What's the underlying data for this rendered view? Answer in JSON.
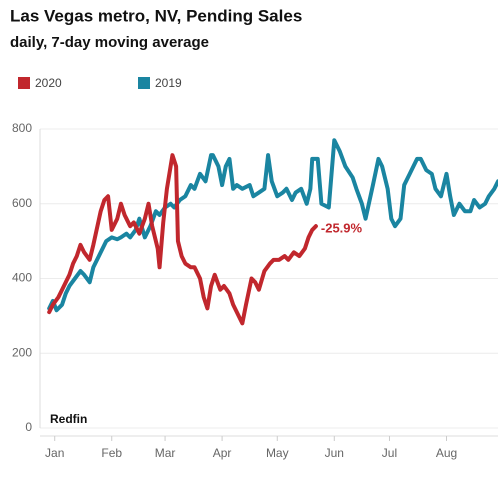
{
  "chart_data": {
    "type": "line",
    "title": "Las Vegas metro, NV, Pending Sales",
    "subtitle": "daily, 7-day moving average",
    "source": "Redfin",
    "annotation": "-25.9%",
    "xlim": [
      7,
      256
    ],
    "ylim": [
      0,
      800
    ],
    "yticks": [
      0,
      200,
      400,
      600,
      800
    ],
    "xticks": [
      {
        "value": 15,
        "label": "Jan"
      },
      {
        "value": 46,
        "label": "Feb"
      },
      {
        "value": 75,
        "label": "Mar"
      },
      {
        "value": 106,
        "label": "Apr"
      },
      {
        "value": 136,
        "label": "May"
      },
      {
        "value": 167,
        "label": "Jun"
      },
      {
        "value": 197,
        "label": "Jul"
      },
      {
        "value": 228,
        "label": "Aug"
      }
    ],
    "grid": true,
    "series": [
      {
        "name": "2020",
        "color": "#c1272d",
        "x": [
          12,
          14,
          17,
          19,
          21,
          23,
          25,
          27,
          29,
          31,
          34,
          36,
          40,
          42,
          44,
          46,
          49,
          51,
          53,
          56,
          58,
          61,
          64,
          66,
          68,
          71,
          72,
          74,
          76,
          78,
          79,
          81,
          82,
          84,
          86,
          89,
          91,
          94,
          96,
          98,
          100,
          102,
          105,
          107,
          110,
          112,
          115,
          117,
          119,
          122,
          124,
          126,
          129,
          132,
          134,
          137,
          140,
          142,
          145,
          148,
          151,
          153,
          155,
          157
        ],
        "values": [
          310,
          330,
          350,
          370,
          390,
          410,
          440,
          460,
          490,
          470,
          450,
          490,
          580,
          610,
          620,
          530,
          560,
          600,
          570,
          540,
          550,
          520,
          560,
          600,
          540,
          480,
          430,
          550,
          640,
          700,
          730,
          700,
          500,
          460,
          440,
          430,
          430,
          400,
          350,
          320,
          380,
          410,
          370,
          380,
          360,
          330,
          300,
          280,
          330,
          400,
          390,
          370,
          420,
          440,
          450,
          450,
          460,
          450,
          470,
          460,
          480,
          510,
          530,
          540
        ]
      },
      {
        "name": "2019",
        "color": "#1a85a1",
        "x": [
          12,
          14,
          16,
          19,
          21,
          23,
          26,
          29,
          31,
          34,
          36,
          39,
          41,
          43,
          46,
          49,
          51,
          54,
          56,
          59,
          61,
          64,
          67,
          70,
          72,
          75,
          78,
          80,
          83,
          86,
          89,
          91,
          94,
          97,
          100,
          101,
          104,
          106,
          108,
          110,
          112,
          114,
          117,
          121,
          123,
          126,
          129,
          131,
          133,
          136,
          139,
          141,
          144,
          146,
          149,
          152,
          154,
          155,
          158,
          160,
          164,
          167,
          170,
          173,
          177,
          179,
          182,
          184,
          188,
          191,
          193,
          196,
          198,
          200,
          203,
          205,
          208,
          212,
          214,
          217,
          220,
          222,
          225,
          228,
          230,
          232,
          235,
          238,
          241,
          243,
          246,
          249,
          251,
          254,
          256
        ],
        "values": [
          320,
          340,
          315,
          330,
          360,
          380,
          400,
          420,
          410,
          390,
          430,
          460,
          480,
          500,
          510,
          505,
          510,
          520,
          510,
          530,
          560,
          510,
          540,
          580,
          570,
          590,
          600,
          590,
          610,
          620,
          650,
          640,
          680,
          660,
          730,
          730,
          700,
          650,
          700,
          720,
          640,
          650,
          640,
          650,
          620,
          630,
          640,
          730,
          660,
          620,
          630,
          640,
          610,
          630,
          640,
          600,
          640,
          720,
          720,
          600,
          590,
          770,
          740,
          700,
          670,
          640,
          600,
          560,
          650,
          720,
          700,
          640,
          560,
          540,
          560,
          650,
          680,
          720,
          720,
          690,
          680,
          640,
          620,
          680,
          620,
          570,
          600,
          580,
          580,
          610,
          590,
          600,
          620,
          640,
          660
        ]
      }
    ]
  }
}
